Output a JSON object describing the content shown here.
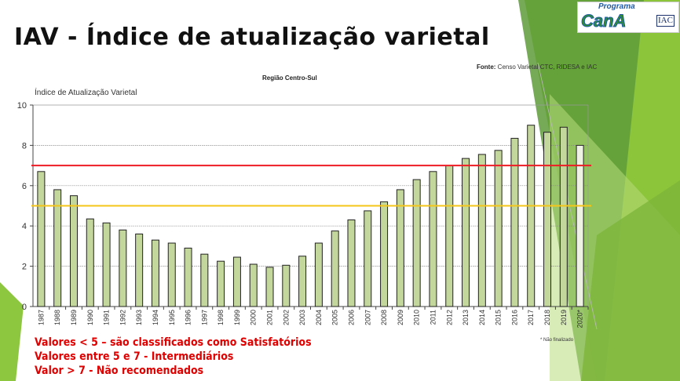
{
  "slide": {
    "title": "IAV - Índice de atualização varietal",
    "logo": {
      "top": "Programa",
      "main": "CanA",
      "badge": "IAC"
    },
    "source_label": "Fonte:",
    "source_text": "Censo Varietal  CTC, RIDESA e IAC",
    "footnote": "* Não finalizado",
    "legend": [
      "Valores < 5 – são classificados como Satisfatórios",
      "Valores entre 5 e 7 - Intermediários",
      "Valor > 7 - Não recomendados"
    ]
  },
  "colors": {
    "bar": "#c3d69b",
    "red_line": "#ee1c25",
    "yellow_line": "#f5c518",
    "last_bar": "#eef2e4"
  },
  "chart_data": {
    "type": "bar",
    "title": "Região Centro-Sul",
    "ylabel": "Índice de Atualização Varietal",
    "xlabel": "",
    "ylim": [
      0,
      10
    ],
    "yticks": [
      0,
      2,
      4,
      6,
      8,
      10
    ],
    "grid": true,
    "categories": [
      "1987",
      "1988",
      "1989",
      "1990",
      "1991",
      "1992",
      "1993",
      "1994",
      "1995",
      "1996",
      "1997",
      "1998",
      "1999",
      "2000",
      "2001",
      "2002",
      "2003",
      "2004",
      "2005",
      "2006",
      "2007",
      "2008",
      "2009",
      "2010",
      "2011",
      "2012",
      "2013",
      "2014",
      "2015",
      "2016",
      "2017",
      "2018",
      "2019",
      "2020*"
    ],
    "values": [
      6.7,
      5.8,
      5.5,
      4.35,
      4.15,
      3.8,
      3.6,
      3.3,
      3.15,
      2.9,
      2.6,
      2.25,
      2.45,
      2.1,
      1.95,
      2.05,
      2.5,
      3.15,
      3.75,
      4.3,
      4.75,
      5.2,
      5.8,
      6.3,
      6.7,
      7.0,
      7.35,
      7.55,
      7.75,
      8.35,
      9.0,
      8.65,
      8.9,
      8.0
    ],
    "reference_lines": [
      {
        "value": 7,
        "color": "red"
      },
      {
        "value": 5,
        "color": "yellow"
      }
    ]
  }
}
